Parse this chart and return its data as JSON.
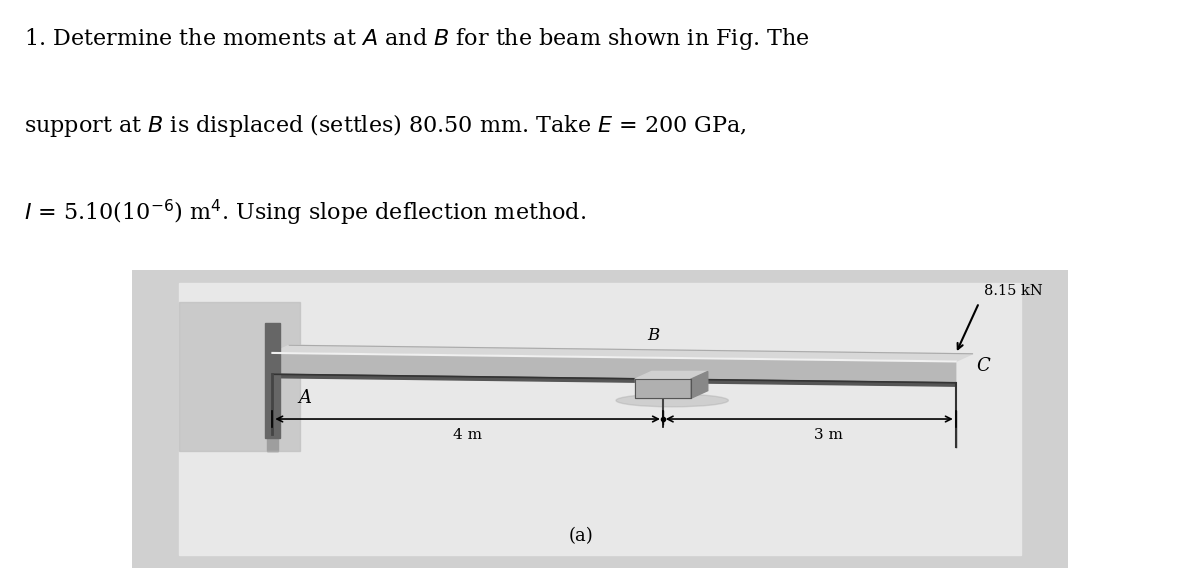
{
  "bg_color": "#ffffff",
  "diagram_bg": "#d0d0d0",
  "diagram_inner_bg": "#e8e8e8",
  "title_line1": "1. Determine the moments at $A$ and $B$ for the beam shown in Fig. The",
  "title_line2": "support at $B$ is displaced (settles) 80.50 mm. Take $E$ = 200 GPa,",
  "title_line3": "$I$ = 5.10(10$^{-6}$) m$^4$. Using slope deflection method.",
  "label_A": "A",
  "label_B": "B",
  "label_C": "C",
  "label_force": "8.15 kN",
  "label_4m": "4 m",
  "label_3m": "3 m",
  "label_fig": "(a)",
  "beam_top_color": "#e0e0e0",
  "beam_mid_color": "#a0a0a0",
  "beam_bot_color": "#606060",
  "beam_edge_color": "#c8c8c8",
  "wall_dark": "#7a7a7a",
  "block_front": "#b0b0b0",
  "block_top": "#d0d0d0",
  "block_right": "#888888"
}
